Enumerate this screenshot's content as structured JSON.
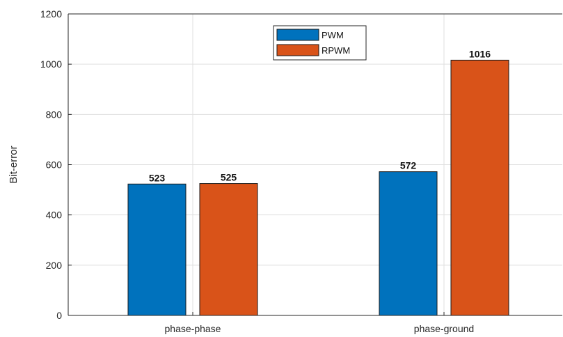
{
  "chart_data": {
    "type": "bar",
    "categories": [
      "phase-phase",
      "phase-ground"
    ],
    "series": [
      {
        "name": "PWM",
        "values": [
          523,
          572
        ],
        "color": "#0072BD"
      },
      {
        "name": "RPWM",
        "values": [
          525,
          1016
        ],
        "color": "#D95319"
      }
    ],
    "data_labels": [
      [
        "523",
        "572"
      ],
      [
        "525",
        "1016"
      ]
    ],
    "xlabel": "",
    "ylabel": "Bit-error",
    "ylim": [
      0,
      1200
    ],
    "yticks": [
      0,
      200,
      400,
      600,
      800,
      1000,
      1200
    ],
    "grid": true,
    "legend_position": "top-center"
  }
}
